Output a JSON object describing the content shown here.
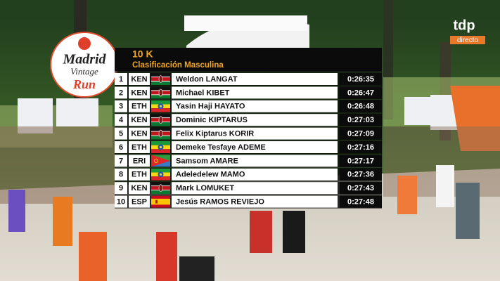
{
  "logo": {
    "line1": "Madrid",
    "line2": "Vintage",
    "line3": "Run"
  },
  "channel": {
    "name": "tdp",
    "status": "directo"
  },
  "results": {
    "title": "10 K",
    "subtitle": "Clasificación Masculina",
    "rows": [
      {
        "rank": 1,
        "country": "KEN",
        "name": "Weldon LANGAT",
        "time": "0:26:35"
      },
      {
        "rank": 2,
        "country": "KEN",
        "name": "Michael KIBET",
        "time": "0:26:47"
      },
      {
        "rank": 3,
        "country": "ETH",
        "name": "Yasin Haji HAYATO",
        "time": "0:26:48"
      },
      {
        "rank": 4,
        "country": "KEN",
        "name": "Dominic KIPTARUS",
        "time": "0:27:03"
      },
      {
        "rank": 5,
        "country": "KEN",
        "name": "Felix  Kiptarus KORIR",
        "time": "0:27:09"
      },
      {
        "rank": 6,
        "country": "ETH",
        "name": "Demeke Tesfaye ADEME",
        "time": "0:27:16"
      },
      {
        "rank": 7,
        "country": "ERI",
        "name": "Samsom AMARE",
        "time": "0:27:17"
      },
      {
        "rank": 8,
        "country": "ETH",
        "name": "Adeledelew MAMO",
        "time": "0:27:36"
      },
      {
        "rank": 9,
        "country": "KEN",
        "name": "Mark LOMUKET",
        "time": "0:27:43"
      },
      {
        "rank": 10,
        "country": "ESP",
        "name": "Jesús RAMOS REVIEJO",
        "time": "0:27:48"
      }
    ]
  }
}
